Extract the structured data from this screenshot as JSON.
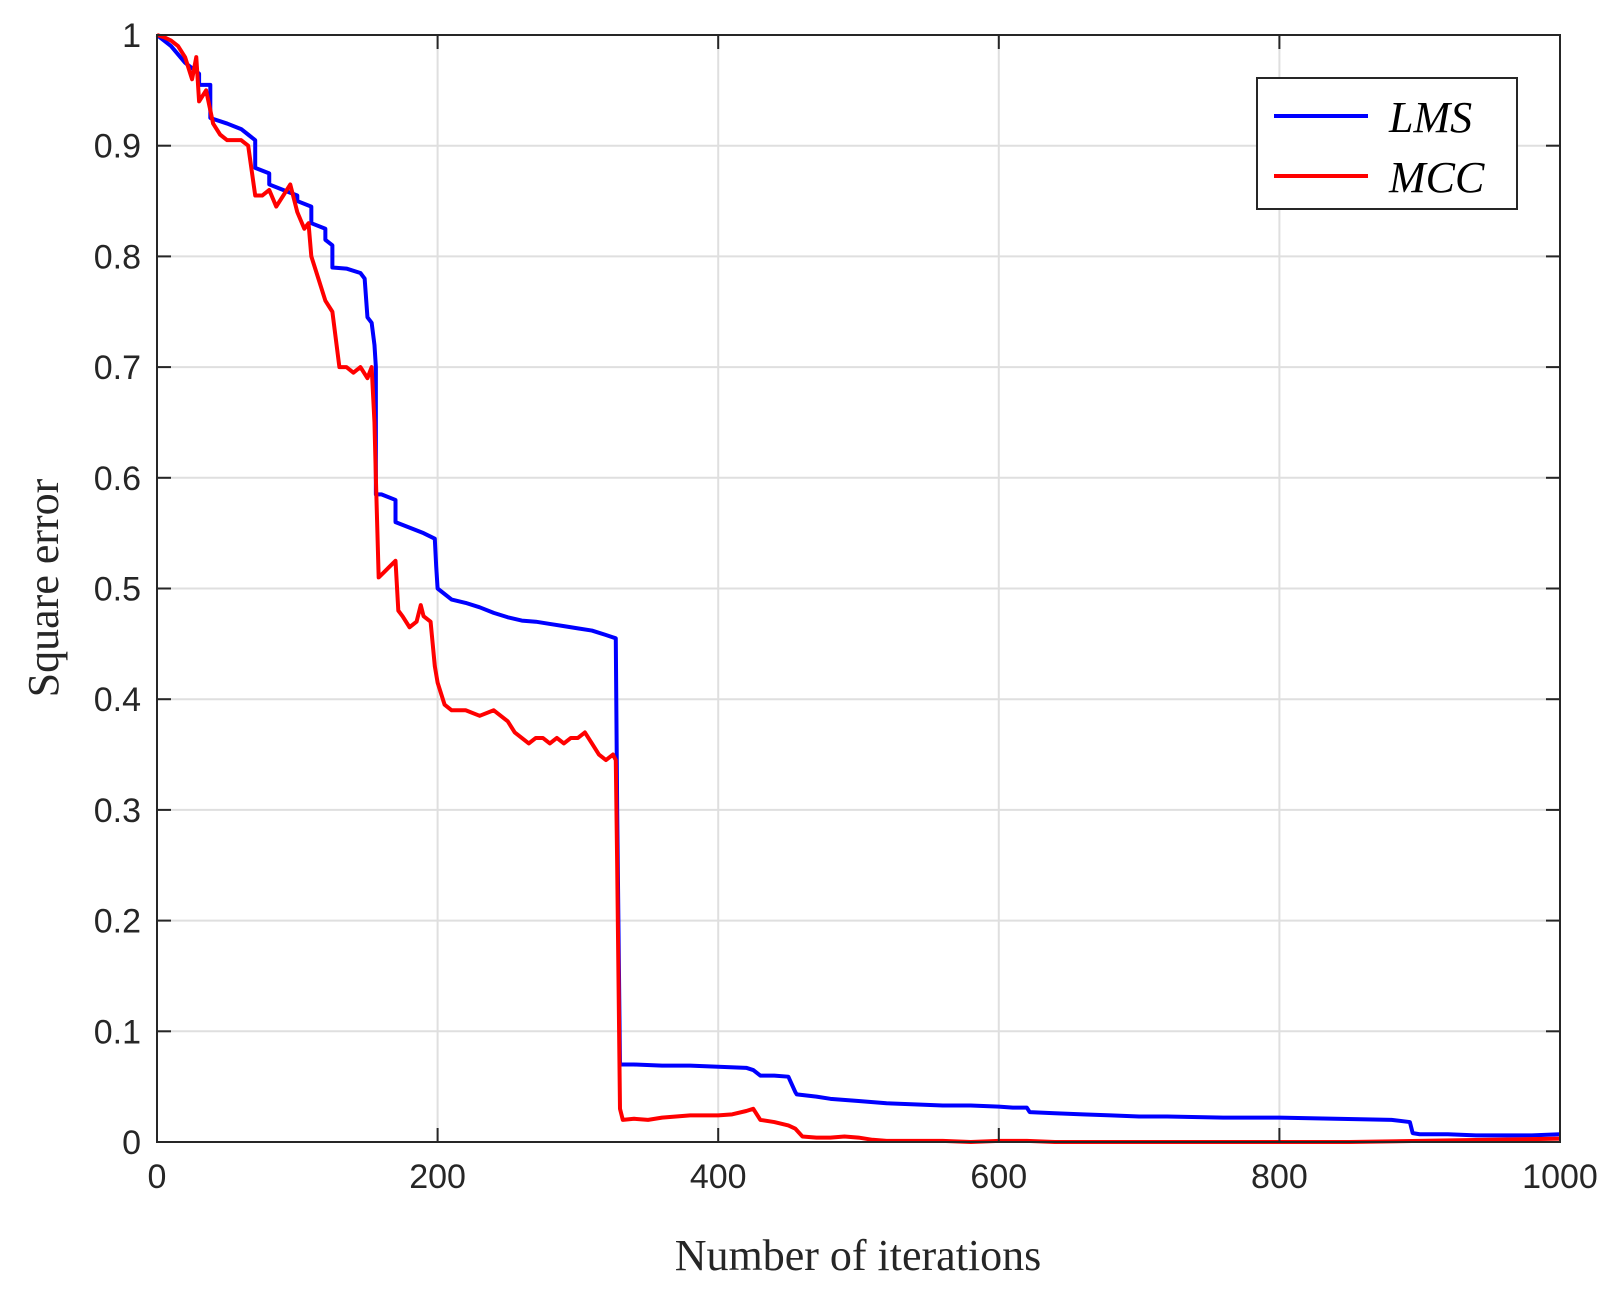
{
  "chart_data": {
    "type": "line",
    "xlabel": "Number of iterations",
    "ylabel": "Square error",
    "xlim": [
      0,
      1000
    ],
    "ylim": [
      0,
      1
    ],
    "xticks": [
      0,
      200,
      400,
      600,
      800,
      1000
    ],
    "xtick_labels": [
      "0",
      "200",
      "400",
      "600",
      "800",
      "1000"
    ],
    "yticks": [
      0,
      0.1,
      0.2,
      0.3,
      0.4,
      0.5,
      0.6,
      0.7,
      0.8,
      0.9,
      1
    ],
    "ytick_labels": [
      "0",
      "0.1",
      "0.2",
      "0.3",
      "0.4",
      "0.5",
      "0.6",
      "0.7",
      "0.8",
      "0.9",
      "1"
    ],
    "grid": true,
    "legend_position": "top-right",
    "series": [
      {
        "name": "LMS",
        "color": "#0000ff",
        "x": [
          0,
          10,
          20,
          30,
          30,
          38,
          38,
          50,
          60,
          65,
          70,
          70,
          80,
          80,
          90,
          100,
          100,
          110,
          110,
          120,
          120,
          125,
          125,
          135,
          145,
          148,
          150,
          153,
          155,
          156,
          156,
          160,
          170,
          170,
          180,
          190,
          198,
          199,
          200,
          210,
          220,
          230,
          240,
          250,
          260,
          270,
          280,
          290,
          300,
          310,
          320,
          327,
          328,
          330,
          331,
          340,
          360,
          380,
          400,
          420,
          425,
          430,
          440,
          450,
          455,
          456,
          470,
          480,
          500,
          520,
          540,
          560,
          580,
          600,
          610,
          620,
          622,
          640,
          660,
          680,
          700,
          720,
          760,
          800,
          840,
          880,
          893,
          895,
          900,
          920,
          940,
          960,
          980,
          1000
        ],
        "y": [
          1.0,
          0.99,
          0.975,
          0.965,
          0.955,
          0.955,
          0.925,
          0.92,
          0.915,
          0.91,
          0.905,
          0.88,
          0.875,
          0.865,
          0.86,
          0.855,
          0.85,
          0.845,
          0.83,
          0.825,
          0.815,
          0.81,
          0.79,
          0.789,
          0.785,
          0.78,
          0.745,
          0.74,
          0.72,
          0.7,
          0.585,
          0.585,
          0.58,
          0.56,
          0.555,
          0.55,
          0.545,
          0.52,
          0.5,
          0.49,
          0.487,
          0.483,
          0.478,
          0.474,
          0.471,
          0.47,
          0.468,
          0.466,
          0.464,
          0.462,
          0.458,
          0.455,
          0.3,
          0.07,
          0.07,
          0.07,
          0.069,
          0.069,
          0.068,
          0.067,
          0.065,
          0.06,
          0.06,
          0.059,
          0.045,
          0.043,
          0.041,
          0.039,
          0.037,
          0.035,
          0.034,
          0.033,
          0.033,
          0.032,
          0.031,
          0.031,
          0.027,
          0.026,
          0.025,
          0.024,
          0.023,
          0.023,
          0.022,
          0.022,
          0.021,
          0.02,
          0.018,
          0.008,
          0.007,
          0.007,
          0.006,
          0.006,
          0.006,
          0.007
        ]
      },
      {
        "name": "MCC",
        "color": "#ff0000",
        "x": [
          0,
          5,
          10,
          15,
          20,
          25,
          28,
          30,
          35,
          40,
          45,
          50,
          55,
          60,
          65,
          70,
          75,
          80,
          85,
          90,
          95,
          100,
          105,
          108,
          110,
          115,
          120,
          125,
          130,
          135,
          140,
          145,
          150,
          153,
          155,
          156,
          158,
          162,
          166,
          170,
          172,
          175,
          180,
          185,
          188,
          190,
          195,
          198,
          200,
          205,
          210,
          220,
          230,
          240,
          250,
          255,
          260,
          265,
          270,
          275,
          280,
          285,
          290,
          295,
          300,
          305,
          310,
          315,
          320,
          325,
          327,
          328,
          330,
          332,
          340,
          350,
          360,
          370,
          380,
          390,
          400,
          410,
          420,
          425,
          430,
          440,
          450,
          455,
          460,
          470,
          480,
          490,
          500,
          510,
          520,
          540,
          560,
          580,
          600,
          620,
          640,
          680,
          700,
          750,
          800,
          850,
          900,
          950,
          1000
        ],
        "y": [
          1.0,
          0.998,
          0.995,
          0.99,
          0.98,
          0.96,
          0.98,
          0.94,
          0.95,
          0.92,
          0.91,
          0.905,
          0.905,
          0.905,
          0.9,
          0.855,
          0.855,
          0.86,
          0.845,
          0.855,
          0.865,
          0.84,
          0.825,
          0.83,
          0.8,
          0.78,
          0.76,
          0.75,
          0.7,
          0.7,
          0.695,
          0.7,
          0.69,
          0.7,
          0.65,
          0.6,
          0.51,
          0.515,
          0.52,
          0.525,
          0.48,
          0.475,
          0.465,
          0.47,
          0.485,
          0.475,
          0.47,
          0.43,
          0.415,
          0.395,
          0.39,
          0.39,
          0.385,
          0.39,
          0.38,
          0.37,
          0.365,
          0.36,
          0.365,
          0.365,
          0.36,
          0.365,
          0.36,
          0.365,
          0.365,
          0.37,
          0.36,
          0.35,
          0.345,
          0.35,
          0.345,
          0.25,
          0.03,
          0.02,
          0.021,
          0.02,
          0.022,
          0.023,
          0.024,
          0.024,
          0.024,
          0.025,
          0.028,
          0.03,
          0.02,
          0.018,
          0.015,
          0.012,
          0.005,
          0.004,
          0.004,
          0.005,
          0.004,
          0.002,
          0.001,
          0.001,
          0.001,
          0.0,
          0.001,
          0.001,
          0.0,
          0.0,
          0.0,
          0.0,
          0.0,
          0.0,
          0.001,
          0.002,
          0.003
        ]
      }
    ]
  }
}
